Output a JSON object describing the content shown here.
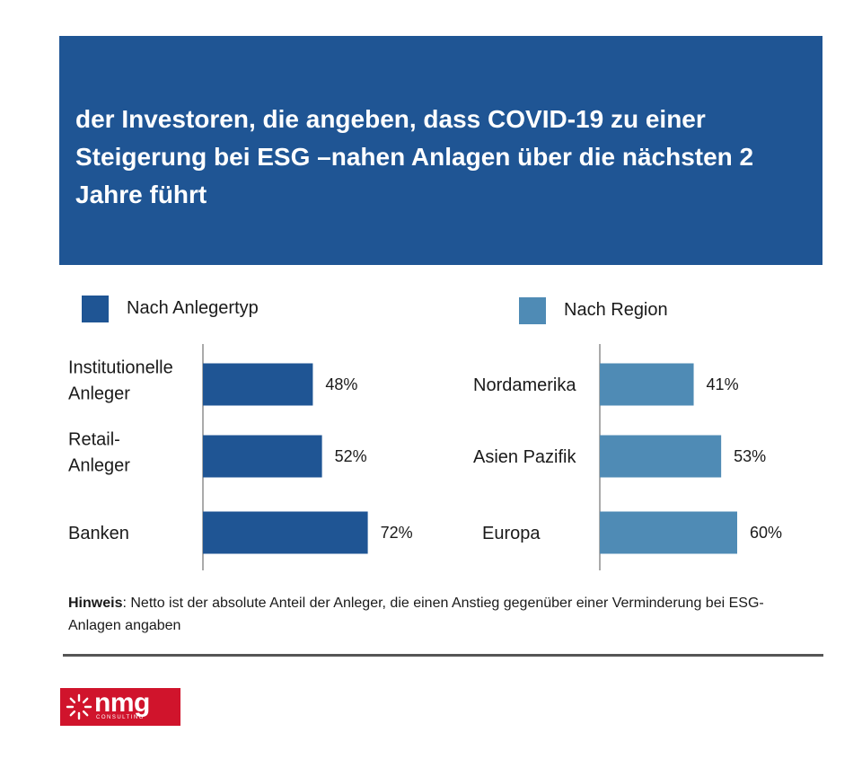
{
  "header": {
    "title": "der Investoren, die angeben, dass COVID-19 zu einer Steigerung bei ESG –nahen Anlagen über die nächsten 2 Jahre führt"
  },
  "legend": [
    {
      "label": "Nach Anlegertyp",
      "color": "#1f5594"
    },
    {
      "label": "Nach Region",
      "color": "#4f8bb5"
    }
  ],
  "chart_data": [
    {
      "type": "bar",
      "orientation": "horizontal",
      "series_name": "Nach Anlegertyp",
      "color": "#1f5594",
      "categories": [
        [
          "Institutionelle",
          "Anleger"
        ],
        [
          "Retail-",
          "Anleger"
        ],
        [
          "Banken"
        ]
      ],
      "values": [
        48,
        52,
        72
      ],
      "value_labels": [
        "48%",
        "52%",
        "72%"
      ],
      "unit": "%",
      "xlim": [
        0,
        120
      ]
    },
    {
      "type": "bar",
      "orientation": "horizontal",
      "series_name": "Nach Region",
      "color": "#4f8bb5",
      "categories": [
        [
          "Nordamerika"
        ],
        [
          "Asien Pazifik"
        ],
        [
          "Europa"
        ]
      ],
      "values": [
        41,
        53,
        60
      ],
      "value_labels": [
        "41%",
        "53%",
        "60%"
      ],
      "unit": "%",
      "xlim": [
        0,
        120
      ]
    }
  ],
  "note": {
    "bold": "Hinweis",
    "text": ": Netto ist der absolute Anteil der Anleger, die einen Anstieg gegenüber einer Verminderung bei ESG-Anlagen angaben"
  },
  "logo": {
    "word": "nmg",
    "sub": "CONSULTING",
    "color": "#d0142c",
    "icon": "starburst-icon"
  }
}
